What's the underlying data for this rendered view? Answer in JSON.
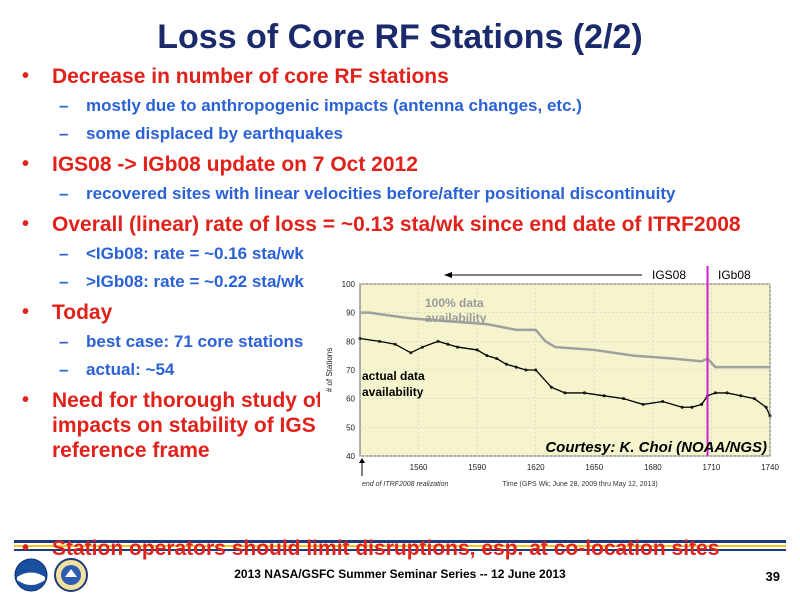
{
  "slide": {
    "title": "Loss of Core RF Stations (2/2)",
    "bullets": [
      {
        "text": "Decrease in number of core RF stations",
        "sub": [
          "mostly due to anthropogenic impacts (antenna changes, etc.)",
          "some displaced by earthquakes"
        ]
      },
      {
        "text": "IGS08 -> IGb08 update on 7 Oct 2012",
        "sub": [
          "recovered sites with linear velocities before/after positional discontinuity"
        ]
      },
      {
        "text": "Overall (linear) rate of loss = ~0.13 sta/wk since end date of ITRF2008",
        "sub": [
          "<IGb08: rate = ~0.16 sta/wk",
          ">IGb08: rate = ~0.22 sta/wk"
        ]
      },
      {
        "text": "Today",
        "sub": [
          "best case: 71 core stations",
          "actual: ~54"
        ]
      },
      {
        "text": "Need for thorough study of impacts on stability of IGS reference frame",
        "sub": []
      },
      {
        "text": "Station operators should limit disruptions, esp. at co-location sites",
        "sub": []
      }
    ],
    "bullet_glyph": "•",
    "dash_glyph": "–"
  },
  "chart_data": {
    "type": "line",
    "ylabel": "# of Stations",
    "xlabel": "Time (GPS Wk; June 28, 2009 thru May 12, 2013)",
    "xlim": [
      1530,
      1740
    ],
    "ylim": [
      40,
      100
    ],
    "x_ticks": [
      "1560",
      "1590",
      "1620",
      "1650",
      "1680",
      "1710",
      "1740"
    ],
    "y_ticks": [
      "40",
      "50",
      "60",
      "70",
      "80",
      "90",
      "100"
    ],
    "update_week": 1708,
    "labels": {
      "igs08": "IGS08",
      "igb08": "IGb08",
      "availability_100": "100% data availability",
      "actual": "actual data availability",
      "courtesy": "Courtesy: K. Choi (NOAA/NGS)",
      "end_itrf": "end of ITRF2008 realization"
    },
    "series": [
      {
        "name": "100% data availability",
        "x": [
          1530,
          1535,
          1545,
          1556,
          1575,
          1595,
          1610,
          1620,
          1625,
          1630,
          1650,
          1670,
          1690,
          1705,
          1708,
          1712,
          1725,
          1740
        ],
        "y": [
          90,
          90,
          89,
          88,
          87,
          86,
          84,
          84,
          80,
          78,
          77,
          75,
          74,
          73,
          74,
          71,
          71,
          71
        ]
      },
      {
        "name": "actual data availability",
        "x": [
          1530,
          1540,
          1548,
          1556,
          1562,
          1570,
          1575,
          1580,
          1590,
          1595,
          1600,
          1605,
          1610,
          1615,
          1620,
          1628,
          1635,
          1645,
          1655,
          1665,
          1675,
          1685,
          1695,
          1700,
          1705,
          1708,
          1712,
          1718,
          1725,
          1732,
          1738,
          1740
        ],
        "y": [
          81,
          80,
          79,
          76,
          78,
          80,
          79,
          78,
          77,
          75,
          74,
          72,
          71,
          70,
          70,
          64,
          62,
          62,
          61,
          60,
          58,
          59,
          57,
          57,
          58,
          61,
          62,
          62,
          61,
          60,
          57,
          54
        ]
      }
    ],
    "colors": {
      "availability_100": "#a0a0a0",
      "actual": "#000000",
      "update_line": "#d020d0",
      "plot_bg": "#f6f4cc",
      "grid": "#cfcfcf"
    }
  },
  "footer": {
    "text": "2013 NASA/GSFC Summer Seminar Series -- 12 June 2013",
    "page": "39",
    "logos": [
      "noaa-logo",
      "commerce-seal-logo"
    ]
  }
}
